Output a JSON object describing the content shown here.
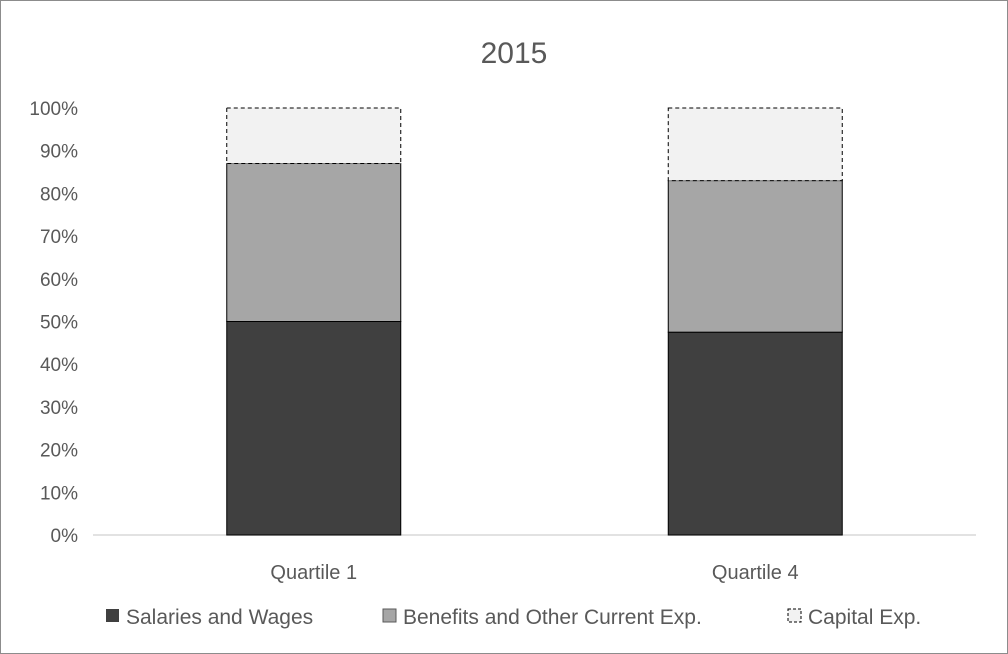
{
  "chart_data": {
    "type": "bar",
    "stacked": true,
    "title": "2015",
    "categories": [
      "Quartile 1",
      "Quartile 4"
    ],
    "series": [
      {
        "name": "Salaries and Wages",
        "values": [
          50,
          47.5
        ],
        "color": "#404040",
        "stroke": "#000000",
        "dashed": false
      },
      {
        "name": "Benefits and Other Current Exp.",
        "values": [
          37,
          35.5
        ],
        "color": "#a6a6a6",
        "stroke": "#000000",
        "dashed": false
      },
      {
        "name": "Capital Exp.",
        "values": [
          13,
          17
        ],
        "color": "#f2f2f2",
        "stroke": "#000000",
        "dashed": true
      }
    ],
    "ylim": [
      0,
      100
    ],
    "yticks": [
      "0%",
      "10%",
      "20%",
      "30%",
      "40%",
      "50%",
      "60%",
      "70%",
      "80%",
      "90%",
      "100%"
    ],
    "grid": false,
    "legend_position": "bottom"
  }
}
